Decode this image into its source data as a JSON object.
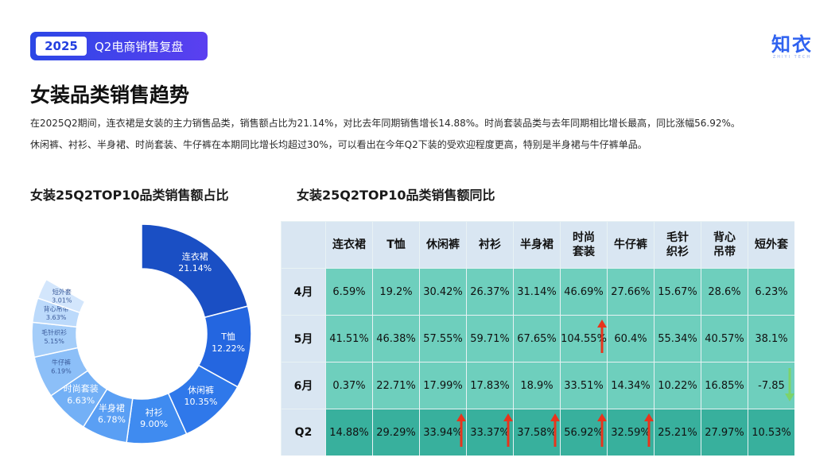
{
  "header": {
    "year": "2025",
    "title": "Q2电商销售复盘"
  },
  "logo": {
    "name": "知衣",
    "subtitle": "ZHIYI TECH"
  },
  "page_title": "女装品类销售趋势",
  "description": [
    "在2025Q2期间，连衣裙是女装的主力销售品类，销售额占比为21.14%，对比去年同期销售增长14.88%。时尚套装品类与去年同期相比增长最高，同比涨幅56.92%。",
    "休闲裤、衬衫、半身裙、时尚套装、牛仔裤在本期同比增长均超过30%，可以看出在今年Q2下装的受欢迎程度更高，特别是半身裙与牛仔裤单品。"
  ],
  "colors": {
    "brand": "#2b47e6",
    "donut_dark": "#1a4fc4",
    "table_light": "#6ecfbd",
    "table_dark": "#38b09d",
    "arrow_up": "#e8341c",
    "arrow_down": "#7dd36a"
  },
  "chart_data": [
    {
      "type": "pie",
      "title": "女装25Q2TOP10品类销售额占比",
      "donut": true,
      "categories": [
        "连衣裙",
        "T恤",
        "休闲裤",
        "衬衫",
        "半身裙",
        "时尚套装",
        "牛仔裤",
        "毛针织衫",
        "背心吊带",
        "短外套"
      ],
      "values": [
        21.14,
        12.22,
        10.35,
        9.0,
        6.78,
        6.63,
        6.19,
        5.15,
        3.63,
        3.01
      ],
      "labels": [
        "21.14%",
        "12.22%",
        "10.35%",
        "9.00%",
        "6.78%",
        "6.63%",
        "6.19%",
        "5.15%",
        "3.63%",
        "3.01%"
      ],
      "colors": [
        "#1a4fc4",
        "#2466e0",
        "#2f78ea",
        "#3f8bf0",
        "#5a9ff4",
        "#73b0f6",
        "#8cbff8",
        "#a4cdf9",
        "#bcdafb",
        "#d3e6fc"
      ],
      "remainder": 16.9
    },
    {
      "type": "table",
      "title": "女装25Q2TOP10品类销售额同比",
      "columns": [
        [
          "连衣裙"
        ],
        [
          "T恤"
        ],
        [
          "休闲裤"
        ],
        [
          "衬衫"
        ],
        [
          "半身裙"
        ],
        [
          "时尚",
          "套装"
        ],
        [
          "牛仔裤"
        ],
        [
          "毛针",
          "织衫"
        ],
        [
          "背心",
          "吊带"
        ],
        [
          "短外套"
        ]
      ],
      "rows": [
        {
          "label": "4月",
          "values": [
            "6.59%",
            "19.2%",
            "30.42%",
            "26.37%",
            "31.14%",
            "46.69%",
            "27.66%",
            "15.67%",
            "28.6%",
            "6.23%"
          ],
          "arrows": []
        },
        {
          "label": "5月",
          "values": [
            "41.51%",
            "46.38%",
            "57.55%",
            "59.71%",
            "67.65%",
            "104.55%",
            "60.4%",
            "55.34%",
            "40.57%",
            "38.1%"
          ],
          "arrows": [
            5
          ]
        },
        {
          "label": "6月",
          "values": [
            "0.37%",
            "22.71%",
            "17.99%",
            "17.83%",
            "18.9%",
            "33.51%",
            "14.34%",
            "10.22%",
            "16.85%",
            "-7.85"
          ],
          "arrows": [],
          "down_arrows": [
            9
          ]
        },
        {
          "label": "Q2",
          "values": [
            "14.88%",
            "29.29%",
            "33.94%",
            "33.37%",
            "37.58%",
            "56.92%",
            "32.59%",
            "25.21%",
            "27.97%",
            "10.53%"
          ],
          "arrows": [
            2,
            3,
            4,
            5,
            6
          ]
        }
      ]
    }
  ]
}
